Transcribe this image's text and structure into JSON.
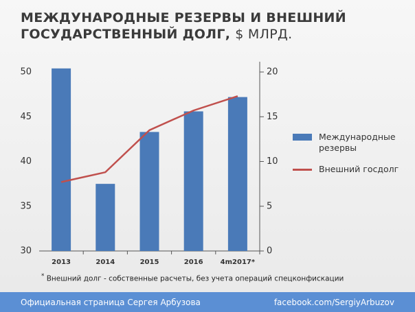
{
  "title_lines": [
    "МЕЖДУНАРОДНЫЕ РЕЗЕРВЫ И ВНЕШНИЙ",
    "ГОСУДАРСТВЕННЫЙ ДОЛГ,"
  ],
  "title_unit": "$ МЛРД.",
  "chart_data": {
    "type": "bar_line",
    "categories": [
      "2013",
      "2014",
      "2015",
      "2016",
      "4m2017*"
    ],
    "series": [
      {
        "name": "Международные резервы",
        "color": "#4a7ab8",
        "type": "bar",
        "values": [
          50.4,
          37.5,
          43.3,
          45.6,
          47.2
        ]
      },
      {
        "name": "Внешний госдолг",
        "color": "#c0504d",
        "type": "line",
        "axis": "y2",
        "values": [
          7.7,
          8.8,
          13.5,
          15.7,
          17.3
        ]
      }
    ],
    "ylim": [
      30,
      50
    ],
    "yticks": [
      30,
      35,
      40,
      45,
      50
    ],
    "y2lim": [
      0,
      20
    ],
    "y2ticks": [
      0,
      5,
      10,
      15,
      20
    ],
    "legend": "right"
  },
  "footnote_mark": "*",
  "footnote": "Внешний долг - собственные расчеты, без учета операций спецконфискации",
  "footer": {
    "left": "Официальная страница Сергея Арбузова",
    "right": "facebook.com/SergiyArbuzov"
  }
}
